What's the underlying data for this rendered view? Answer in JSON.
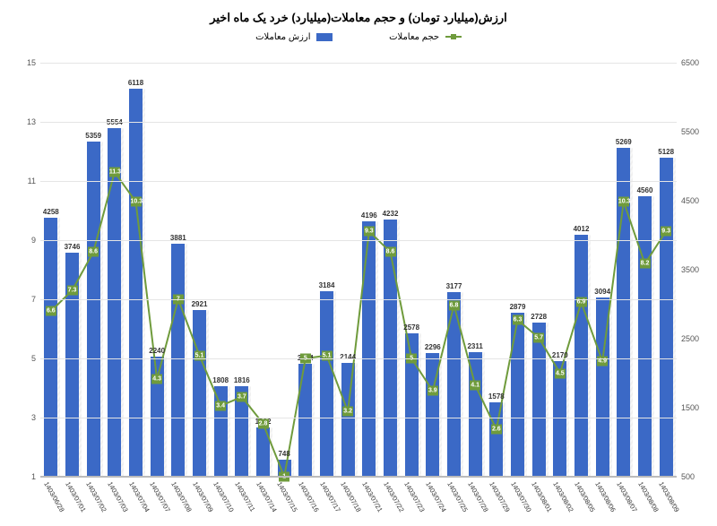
{
  "title": "ارزش(میلیارد تومان) و حجم معاملات(میلیارد) خرد یک ماه اخیر",
  "legend": {
    "bars": "ارزش معاملات",
    "line": "حجم معاملات"
  },
  "type": "bar+line",
  "background_color": "#ffffff",
  "grid_color": "#e5e5e5",
  "bar_color": "#3b69c6",
  "line_color": "#6f9b3c",
  "marker_color": "#6f9b3c",
  "title_fontsize": 13,
  "label_fontsize": 8,
  "tick_fontsize": 9,
  "y_left": {
    "min": 1,
    "max": 15,
    "ticks": [
      1,
      3,
      5,
      7,
      9,
      11,
      13,
      15
    ]
  },
  "y_right": {
    "min": 500,
    "max": 6500,
    "ticks": [
      500,
      1500,
      2500,
      3500,
      4500,
      5500,
      6500
    ]
  },
  "categories": [
    "1403/06/28",
    "1403/07/01",
    "1403/07/02",
    "1403/07/03",
    "1403/07/04",
    "1403/07/07",
    "1403/07/08",
    "1403/07/09",
    "1403/07/10",
    "1403/07/11",
    "1403/07/14",
    "1403/07/15",
    "1403/07/16",
    "1403/07/17",
    "1403/07/18",
    "1403/07/21",
    "1403/07/22",
    "1403/07/23",
    "1403/07/24",
    "1403/07/25",
    "1403/07/28",
    "1403/07/29",
    "1403/07/30",
    "1403/08/01",
    "1403/08/02",
    "1403/08/05",
    "1403/08/06",
    "1403/08/07",
    "1403/08/08",
    "1403/08/09"
  ],
  "bar_values": [
    4258,
    3746,
    5359,
    5554,
    6118,
    2240,
    3881,
    2921,
    1808,
    1816,
    1212,
    748,
    2134,
    3184,
    2144,
    4196,
    4232,
    2578,
    2296,
    3177,
    2311,
    1578,
    2879,
    2728,
    2170,
    4012,
    3094,
    5269,
    4560,
    5128
  ],
  "line_values": [
    6.6,
    7.3,
    8.6,
    11.3,
    10.3,
    4.3,
    7,
    5.1,
    3.4,
    3.7,
    2.8,
    1,
    5,
    5.1,
    3.2,
    9.3,
    8.6,
    5,
    3.9,
    6.8,
    4.1,
    2.6,
    6.3,
    5.7,
    4.5,
    6.9,
    4.9,
    10.3,
    8.2,
    9.3
  ],
  "bar_width_ratio": 0.62
}
